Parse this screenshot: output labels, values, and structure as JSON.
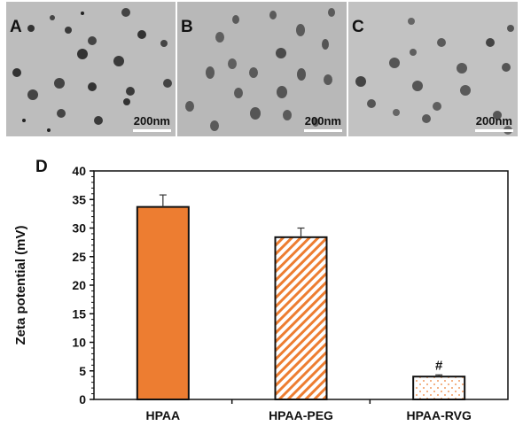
{
  "panels": [
    {
      "label": "A",
      "scale": "200nm"
    },
    {
      "label": "B",
      "scale": "200nm"
    },
    {
      "label": "C",
      "scale": "200nm"
    }
  ],
  "chart_panel_label": "D",
  "chart_data": {
    "type": "bar",
    "categories": [
      "HPAA",
      "HPAA-PEG",
      "HPAA-RVG"
    ],
    "values": [
      33.7,
      28.4,
      4.0
    ],
    "errors": [
      2.1,
      1.6,
      0.3
    ],
    "annotations": [
      "",
      "",
      "#"
    ],
    "fills": [
      "solid",
      "diagonal-hatch",
      "dotted"
    ],
    "colors": {
      "accent": "#ED7D31"
    },
    "ylabel": "Zeta potential (mV)",
    "xlabel": "",
    "ylim": [
      0,
      40
    ],
    "yticks": [
      0,
      5,
      10,
      15,
      20,
      25,
      30,
      35,
      40
    ],
    "grid": false
  }
}
